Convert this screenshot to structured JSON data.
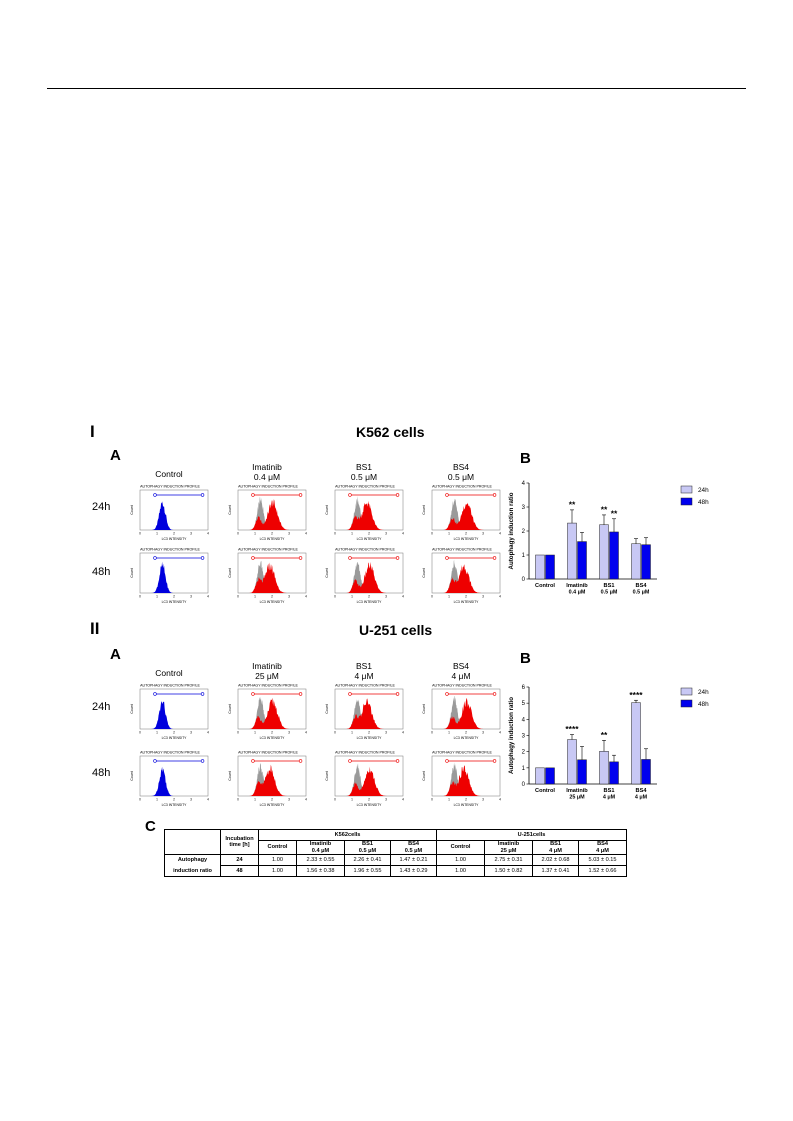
{
  "sections": [
    {
      "roman": "I",
      "cell_title": "K562 cells",
      "panel_a": "A",
      "panel_b": "B",
      "treatments": [
        {
          "line1": "Control",
          "line2": ""
        },
        {
          "line1": "Imatinib",
          "line2": "0.4 μM"
        },
        {
          "line1": "BS1",
          "line2": "0.5 μM"
        },
        {
          "line1": "BS4",
          "line2": "0.5 μM"
        }
      ],
      "times": [
        "24h",
        "48h"
      ],
      "histogram_colors": [
        "#0000dd",
        "#ee0000",
        "#ee0000",
        "#ee0000"
      ],
      "histogram_title": "AUTOPHAGY INDUCTION PROFILE",
      "histogram_xlabel": "LC3 INTENSITY",
      "histogram_ylabel": "Count"
    },
    {
      "roman": "II",
      "cell_title": "U-251 cells",
      "panel_a": "A",
      "panel_b": "B",
      "treatments": [
        {
          "line1": "Control",
          "line2": ""
        },
        {
          "line1": "Imatinib",
          "line2": "25 μM"
        },
        {
          "line1": "BS1",
          "line2": "4 μM"
        },
        {
          "line1": "BS4",
          "line2": "4 μM"
        }
      ],
      "times": [
        "24h",
        "48h"
      ],
      "histogram_colors": [
        "#0000dd",
        "#ee0000",
        "#ee0000",
        "#ee0000"
      ],
      "histogram_title": "AUTOPHAGY INDUCTION PROFILE",
      "histogram_xlabel": "LC3 INTENSITY",
      "histogram_ylabel": "Count"
    }
  ],
  "chart_data": [
    {
      "type": "bar",
      "ylabel": "Autophagy induction ratio",
      "ylim": [
        0,
        4
      ],
      "yticks": [
        "0",
        "1",
        "2",
        "3",
        "4"
      ],
      "categories": [
        {
          "line1": "Control",
          "line2": ""
        },
        {
          "line1": "Imatinib",
          "line2": "0.4 μM"
        },
        {
          "line1": "BS1",
          "line2": "0.5 μM"
        },
        {
          "line1": "BS4",
          "line2": "0.5 μM"
        }
      ],
      "series": [
        {
          "name": "24h",
          "color": "#c8c8f4",
          "values": [
            1.0,
            2.33,
            2.26,
            1.47
          ],
          "errors": [
            0,
            0.55,
            0.41,
            0.21
          ]
        },
        {
          "name": "48h",
          "color": "#0000ee",
          "values": [
            1.0,
            1.56,
            1.96,
            1.43
          ],
          "errors": [
            0,
            0.38,
            0.55,
            0.29
          ]
        }
      ],
      "significance": [
        {
          "category": 1,
          "series": 0,
          "stars": "**"
        },
        {
          "category": 2,
          "series": 0,
          "stars": "**"
        },
        {
          "category": 2,
          "series": 1,
          "stars": "**"
        }
      ],
      "legend_position": "top-right"
    },
    {
      "type": "bar",
      "ylabel": "Autophagy induction ratio",
      "ylim": [
        0,
        6
      ],
      "yticks": [
        "0",
        "1",
        "2",
        "3",
        "4",
        "5",
        "6"
      ],
      "categories": [
        {
          "line1": "Control",
          "line2": ""
        },
        {
          "line1": "Imatinib",
          "line2": "25 μM"
        },
        {
          "line1": "BS1",
          "line2": "4 μM"
        },
        {
          "line1": "BS4",
          "line2": "4 μM"
        }
      ],
      "series": [
        {
          "name": "24h",
          "color": "#c8c8f4",
          "values": [
            1.0,
            2.75,
            2.02,
            5.03
          ],
          "errors": [
            0,
            0.31,
            0.68,
            0.15
          ]
        },
        {
          "name": "48h",
          "color": "#0000ee",
          "values": [
            1.0,
            1.5,
            1.37,
            1.52
          ],
          "errors": [
            0,
            0.82,
            0.41,
            0.66
          ]
        }
      ],
      "significance": [
        {
          "category": 1,
          "series": 0,
          "stars": "****"
        },
        {
          "category": 2,
          "series": 0,
          "stars": "**"
        },
        {
          "category": 3,
          "series": 0,
          "stars": "****"
        }
      ],
      "legend_position": "top-right"
    },
    {
      "type": "table",
      "panel": "C",
      "col_label": "Incubation time [h]",
      "groups": [
        "K562cells",
        "U-251cells"
      ],
      "k562_headers": [
        {
          "line1": "Control",
          "line2": ""
        },
        {
          "line1": "Imatinib",
          "line2": "0.4 μM"
        },
        {
          "line1": "BS1",
          "line2": "0.5 μM"
        },
        {
          "line1": "BS4",
          "line2": "0.5 μM"
        }
      ],
      "u251_headers": [
        {
          "line1": "Control",
          "line2": ""
        },
        {
          "line1": "Imatinib",
          "line2": "25 μM"
        },
        {
          "line1": "BS1",
          "line2": "4 μM"
        },
        {
          "line1": "BS4",
          "line2": "4 μM"
        }
      ],
      "row_label_line1": "Autophagy",
      "row_label_line2": "induction ratio",
      "rows": [
        {
          "time": "24",
          "k562": [
            "1.00",
            "2.33 ± 0.55",
            "2.26 ± 0.41",
            "1.47 ± 0.21"
          ],
          "u251": [
            "1.00",
            "2.75 ± 0.31",
            "2.02 ± 0.68",
            "5.03 ± 0.15"
          ]
        },
        {
          "time": "48",
          "k562": [
            "1.00",
            "1.56 ± 0.38",
            "1.96 ± 0.55",
            "1.43 ± 0.29"
          ],
          "u251": [
            "1.00",
            "1.50 ± 0.82",
            "1.37 ± 0.41",
            "1.52 ± 0.66"
          ]
        }
      ]
    }
  ]
}
